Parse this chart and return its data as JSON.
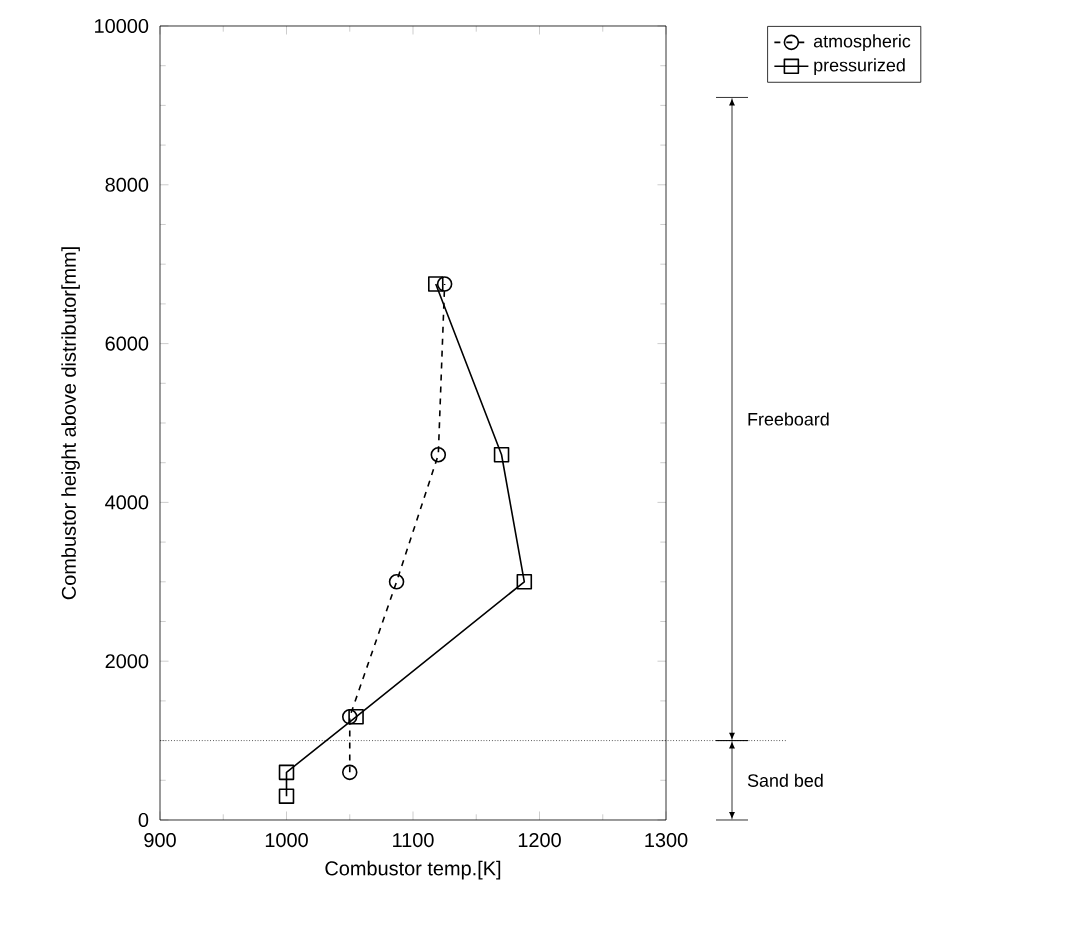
{
  "chart_data": {
    "type": "line",
    "xlabel": "Combustor temp.[K]",
    "ylabel": "Combustor height above distributor[mm]",
    "xlim": [
      900,
      1300
    ],
    "ylim": [
      0,
      10000
    ],
    "xticks": [
      900,
      1000,
      1100,
      1200,
      1300
    ],
    "yticks": [
      0,
      2000,
      4000,
      6000,
      8000,
      10000
    ],
    "grid": false,
    "legend": "top right",
    "series": [
      {
        "name": "atmospheric",
        "color": "#000000",
        "marker": "circle",
        "line_style": "dashed",
        "x": [
          1050,
          1050,
          1087,
          1120,
          1125
        ],
        "values": [
          600,
          1300,
          3000,
          4600,
          6750
        ]
      },
      {
        "name": "pressurized",
        "color": "#000000",
        "marker": "square",
        "line_style": "solid",
        "x": [
          1000,
          1000,
          1055,
          1188,
          1170,
          1118
        ],
        "values": [
          300,
          600,
          1300,
          3000,
          4600,
          6750
        ]
      }
    ],
    "ref_lines": [
      {
        "axis": "y",
        "value": 1000,
        "line_style": "dotted",
        "color": "#000000"
      }
    ],
    "annotations": [
      "Freeboard",
      "Sand bed"
    ]
  }
}
